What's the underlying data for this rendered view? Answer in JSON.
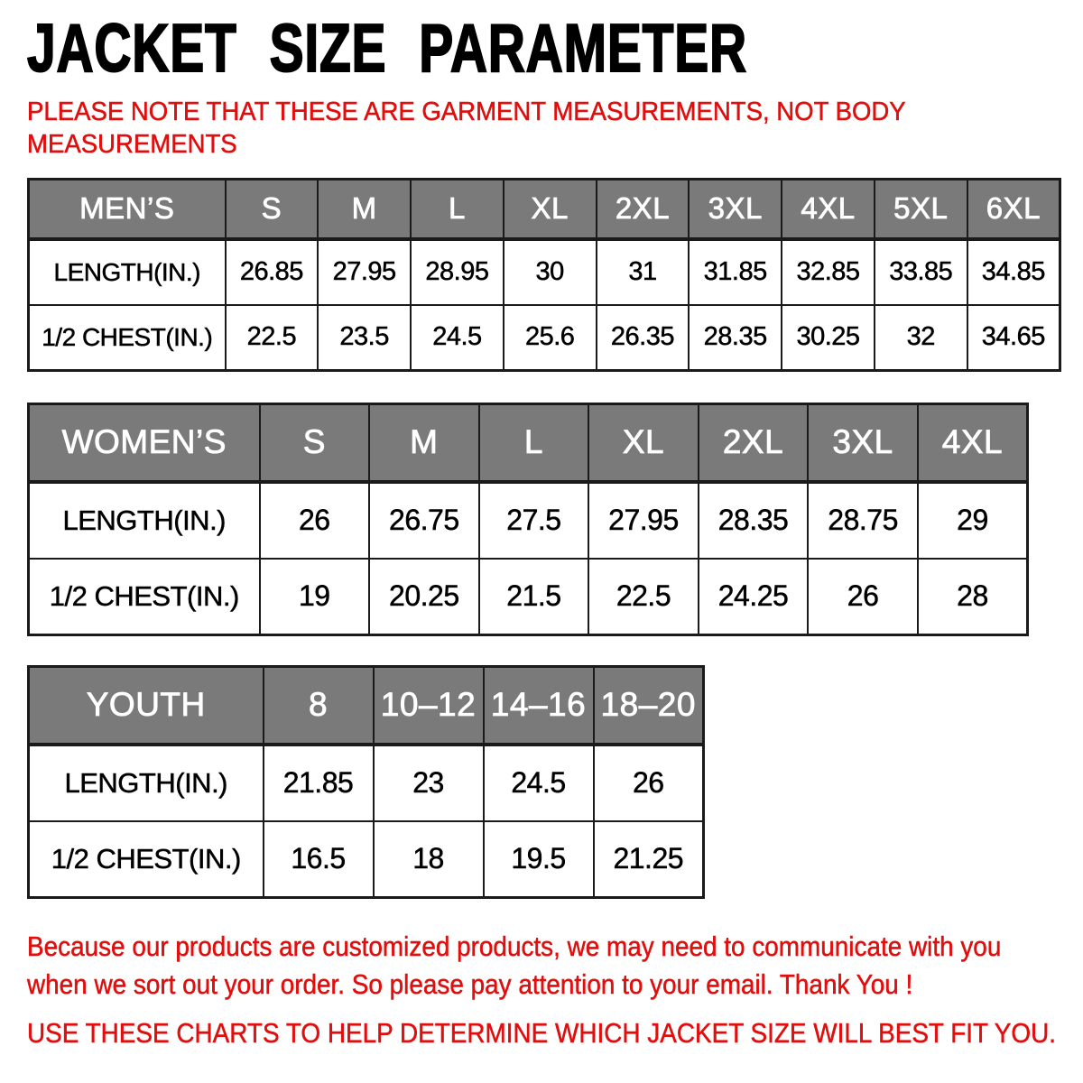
{
  "page": {
    "title": "JACKET SIZE PARAMETER"
  },
  "note": {
    "line1": "PLEASE NOTE THAT THESE ARE GARMENT MEASUREMENTS, NOT BODY",
    "line2": "MEASUREMENTS"
  },
  "colors": {
    "header_bg": "#7a7a7a",
    "header_text": "#ffffff",
    "accent_red": "#e10e0e",
    "border": "#1a1a1a",
    "title_text": "#000000"
  },
  "tables": [
    {
      "id": "mens",
      "label": "MEN’S",
      "sizes": [
        "S",
        "M",
        "L",
        "XL",
        "2XL",
        "3XL",
        "4XL",
        "5XL",
        "6XL"
      ],
      "rows": [
        {
          "label": "LENGTH(IN.)",
          "values": [
            "26.85",
            "27.95",
            "28.95",
            "30",
            "31",
            "31.85",
            "32.85",
            "33.85",
            "34.85"
          ]
        },
        {
          "label": "1/2 CHEST(IN.)",
          "values": [
            "22.5",
            "23.5",
            "24.5",
            "25.6",
            "26.35",
            "28.35",
            "30.25",
            "32",
            "34.65"
          ]
        }
      ]
    },
    {
      "id": "womens",
      "label": "WOMEN’S",
      "sizes": [
        "S",
        "M",
        "L",
        "XL",
        "2XL",
        "3XL",
        "4XL"
      ],
      "rows": [
        {
          "label": "LENGTH(IN.)",
          "values": [
            "26",
            "26.75",
            "27.5",
            "27.95",
            "28.35",
            "28.75",
            "29"
          ]
        },
        {
          "label": "1/2 CHEST(IN.)",
          "values": [
            "19",
            "20.25",
            "21.5",
            "22.5",
            "24.25",
            "26",
            "28"
          ]
        }
      ]
    },
    {
      "id": "youth",
      "label": "YOUTH",
      "sizes": [
        "8",
        "10–12",
        "14–16",
        "18–20"
      ],
      "rows": [
        {
          "label": "LENGTH(IN.)",
          "values": [
            "21.85",
            "23",
            "24.5",
            "26"
          ]
        },
        {
          "label": "1/2 CHEST(IN.)",
          "values": [
            "16.5",
            "18",
            "19.5",
            "21.25"
          ]
        }
      ]
    }
  ],
  "footer": {
    "line1": "Because our products are customized products, we may need to communicate with you",
    "line2": "when we sort out your order. So please pay attention to your email. Thank You !",
    "line3": "USE THESE CHARTS TO HELP DETERMINE WHICH JACKET SIZE WILL BEST FIT YOU."
  }
}
